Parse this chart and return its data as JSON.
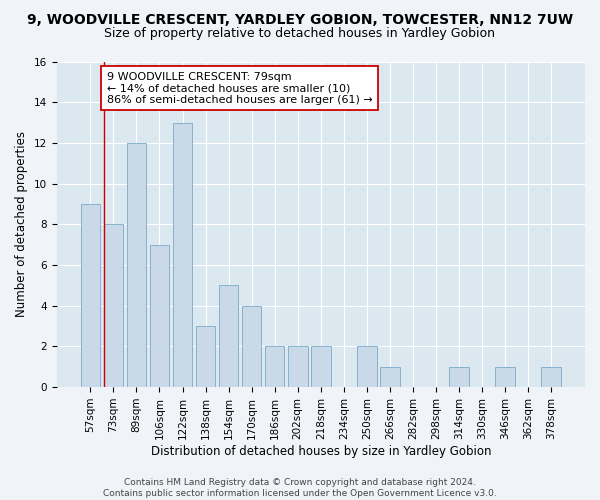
{
  "title": "9, WOODVILLE CRESCENT, YARDLEY GOBION, TOWCESTER, NN12 7UW",
  "subtitle": "Size of property relative to detached houses in Yardley Gobion",
  "xlabel": "Distribution of detached houses by size in Yardley Gobion",
  "ylabel": "Number of detached properties",
  "bar_labels": [
    "57sqm",
    "73sqm",
    "89sqm",
    "106sqm",
    "122sqm",
    "138sqm",
    "154sqm",
    "170sqm",
    "186sqm",
    "202sqm",
    "218sqm",
    "234sqm",
    "250sqm",
    "266sqm",
    "282sqm",
    "298sqm",
    "314sqm",
    "330sqm",
    "346sqm",
    "362sqm",
    "378sqm"
  ],
  "bar_values": [
    9,
    8,
    12,
    7,
    13,
    3,
    5,
    4,
    2,
    2,
    2,
    0,
    2,
    1,
    0,
    0,
    1,
    0,
    1,
    0,
    1
  ],
  "bar_color": "#c9d9e8",
  "bar_edge_color": "#7aaac8",
  "vline_x": 0.575,
  "vline_color": "#cc0000",
  "annotation_text": "9 WOODVILLE CRESCENT: 79sqm\n← 14% of detached houses are smaller (10)\n86% of semi-detached houses are larger (61) →",
  "annotation_box_color": "#ffffff",
  "annotation_box_edge": "#cc0000",
  "ylim": [
    0,
    16
  ],
  "yticks": [
    0,
    2,
    4,
    6,
    8,
    10,
    12,
    14,
    16
  ],
  "footer": "Contains HM Land Registry data © Crown copyright and database right 2024.\nContains public sector information licensed under the Open Government Licence v3.0.",
  "bg_color": "#f0f4f8",
  "plot_bg_color": "#dce8f0",
  "title_fontsize": 10,
  "subtitle_fontsize": 9,
  "axis_label_fontsize": 8.5,
  "tick_fontsize": 7.5,
  "annotation_fontsize": 8,
  "footer_fontsize": 6.5
}
